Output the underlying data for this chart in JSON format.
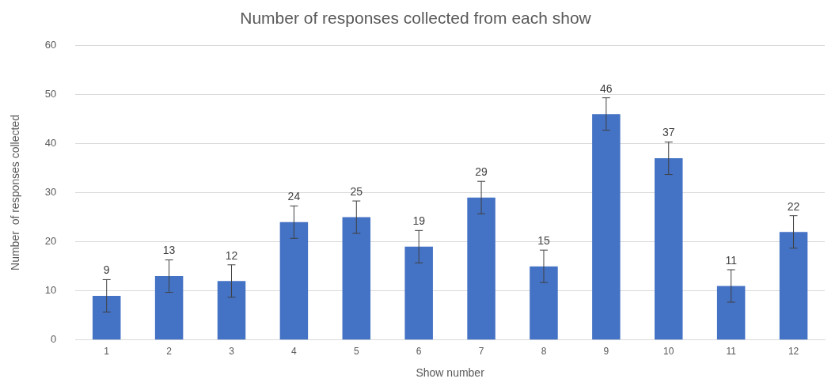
{
  "chart_data": {
    "type": "bar",
    "title": "Number of responses collected from each show",
    "xlabel": "Show number",
    "ylabel": "Number  of responses collected",
    "categories": [
      "1",
      "2",
      "3",
      "4",
      "5",
      "6",
      "7",
      "8",
      "9",
      "10",
      "11",
      "12"
    ],
    "values": [
      9,
      13,
      12,
      24,
      25,
      19,
      29,
      15,
      46,
      37,
      11,
      22
    ],
    "errors": [
      3.3,
      3.3,
      3.3,
      3.3,
      3.3,
      3.3,
      3.3,
      3.3,
      3.3,
      3.3,
      3.3,
      3.3
    ],
    "color": "#4472c4",
    "ylim": [
      0,
      60
    ],
    "yticks": [
      0,
      10,
      20,
      30,
      40,
      50,
      60
    ],
    "grid": "y",
    "legend": false,
    "data_labels": true
  }
}
